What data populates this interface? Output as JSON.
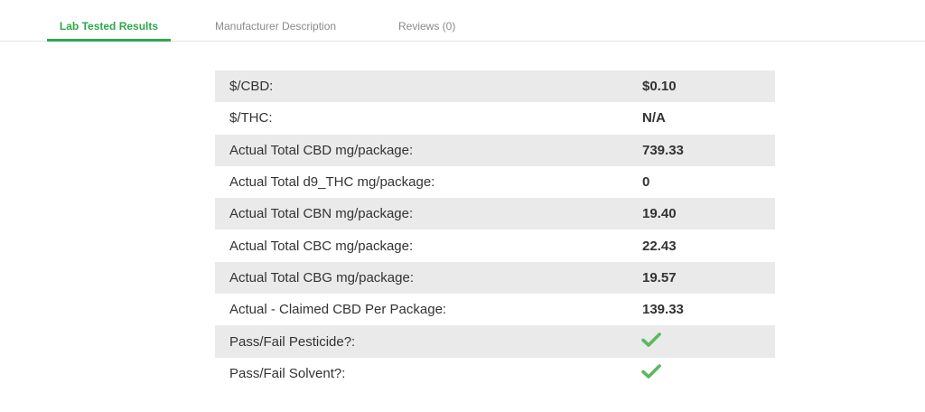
{
  "tabs": [
    {
      "label": "Lab Tested Results",
      "active": true
    },
    {
      "label": "Manufacturer Description",
      "active": false
    },
    {
      "label": "Reviews (0)",
      "active": false
    }
  ],
  "results": [
    {
      "label": "$/CBD:",
      "value": "$0.10"
    },
    {
      "label": "$/THC:",
      "value": "N/A"
    },
    {
      "label": "Actual Total CBD mg/package:",
      "value": "739.33"
    },
    {
      "label": "Actual Total d9_THC mg/package:",
      "value": "0"
    },
    {
      "label": "Actual Total CBN mg/package:",
      "value": "19.40"
    },
    {
      "label": "Actual Total CBC mg/package:",
      "value": "22.43"
    },
    {
      "label": "Actual Total CBG mg/package:",
      "value": "19.57"
    },
    {
      "label": "Actual - Claimed CBD Per Package:",
      "value": "139.33"
    },
    {
      "label": "Pass/Fail Pesticide?:",
      "icon": "check-icon",
      "status": "pass"
    },
    {
      "label": "Pass/Fail Solvent?:",
      "icon": "check-icon",
      "status": "pass"
    }
  ],
  "colors": {
    "accent": "#2ea84b",
    "row_shade": "#eaeaea",
    "check": "#5cb85c"
  }
}
